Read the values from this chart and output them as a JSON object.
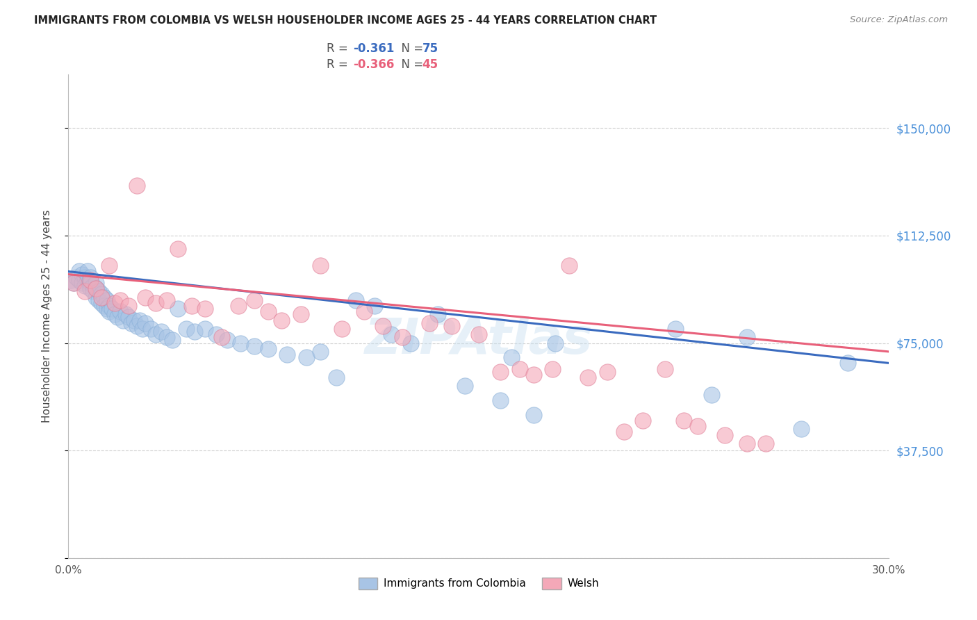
{
  "title": "IMMIGRANTS FROM COLOMBIA VS WELSH HOUSEHOLDER INCOME AGES 25 - 44 YEARS CORRELATION CHART",
  "source": "Source: ZipAtlas.com",
  "ylabel": "Householder Income Ages 25 - 44 years",
  "xlim": [
    0.0,
    0.3
  ],
  "ylim": [
    0,
    168750
  ],
  "xticks": [
    0.0,
    0.05,
    0.1,
    0.15,
    0.2,
    0.25,
    0.3
  ],
  "xticklabels": [
    "0.0%",
    "",
    "",
    "",
    "",
    "",
    "30.0%"
  ],
  "yticks": [
    0,
    37500,
    75000,
    112500,
    150000
  ],
  "yticklabels_right": [
    "",
    "$37,500",
    "$75,000",
    "$112,500",
    "$150,000"
  ],
  "grid_color": "#cccccc",
  "background_color": "#ffffff",
  "colombia_color": "#a8c4e5",
  "welsh_color": "#f4a8b8",
  "colombia_line_color": "#3a6bbf",
  "welsh_line_color": "#e8607a",
  "colombia_label": "Immigrants from Colombia",
  "welsh_label": "Welsh",
  "title_color": "#222222",
  "axis_label_color": "#444444",
  "tick_color_right": "#4a90d9",
  "watermark": "ZIPAtlas",
  "colombia_x": [
    0.001,
    0.002,
    0.003,
    0.004,
    0.004,
    0.005,
    0.005,
    0.006,
    0.006,
    0.007,
    0.007,
    0.008,
    0.008,
    0.008,
    0.009,
    0.009,
    0.01,
    0.01,
    0.01,
    0.011,
    0.011,
    0.012,
    0.012,
    0.013,
    0.013,
    0.014,
    0.014,
    0.015,
    0.015,
    0.016,
    0.017,
    0.018,
    0.019,
    0.02,
    0.021,
    0.022,
    0.023,
    0.024,
    0.025,
    0.026,
    0.027,
    0.028,
    0.03,
    0.032,
    0.034,
    0.036,
    0.038,
    0.04,
    0.043,
    0.046,
    0.05,
    0.054,
    0.058,
    0.063,
    0.068,
    0.073,
    0.08,
    0.087,
    0.092,
    0.098,
    0.105,
    0.112,
    0.118,
    0.125,
    0.135,
    0.145,
    0.158,
    0.162,
    0.17,
    0.178,
    0.222,
    0.235,
    0.248,
    0.268,
    0.285
  ],
  "colombia_y": [
    97000,
    96000,
    98000,
    100000,
    97000,
    99000,
    96000,
    98000,
    95000,
    100000,
    97000,
    98000,
    96000,
    94000,
    95000,
    93000,
    96000,
    94000,
    91000,
    93000,
    90000,
    92000,
    89000,
    91000,
    88000,
    90000,
    87000,
    88000,
    86000,
    87000,
    85000,
    84000,
    86000,
    83000,
    85000,
    84000,
    82000,
    83000,
    81000,
    83000,
    80000,
    82000,
    80000,
    78000,
    79000,
    77000,
    76000,
    87000,
    80000,
    79000,
    80000,
    78000,
    76000,
    75000,
    74000,
    73000,
    71000,
    70000,
    72000,
    63000,
    90000,
    88000,
    78000,
    75000,
    85000,
    60000,
    55000,
    70000,
    50000,
    75000,
    80000,
    57000,
    77000,
    45000,
    68000
  ],
  "welsh_x": [
    0.002,
    0.006,
    0.008,
    0.01,
    0.012,
    0.015,
    0.017,
    0.019,
    0.022,
    0.025,
    0.028,
    0.032,
    0.036,
    0.04,
    0.045,
    0.05,
    0.056,
    0.062,
    0.068,
    0.073,
    0.078,
    0.085,
    0.092,
    0.1,
    0.108,
    0.115,
    0.122,
    0.132,
    0.14,
    0.15,
    0.158,
    0.165,
    0.17,
    0.177,
    0.183,
    0.19,
    0.197,
    0.203,
    0.21,
    0.218,
    0.225,
    0.23,
    0.24,
    0.248,
    0.255
  ],
  "welsh_y": [
    96000,
    93000,
    97000,
    94000,
    91000,
    102000,
    89000,
    90000,
    88000,
    130000,
    91000,
    89000,
    90000,
    108000,
    88000,
    87000,
    77000,
    88000,
    90000,
    86000,
    83000,
    85000,
    102000,
    80000,
    86000,
    81000,
    77000,
    82000,
    81000,
    78000,
    65000,
    66000,
    64000,
    66000,
    102000,
    63000,
    65000,
    44000,
    48000,
    66000,
    48000,
    46000,
    43000,
    40000,
    40000
  ]
}
